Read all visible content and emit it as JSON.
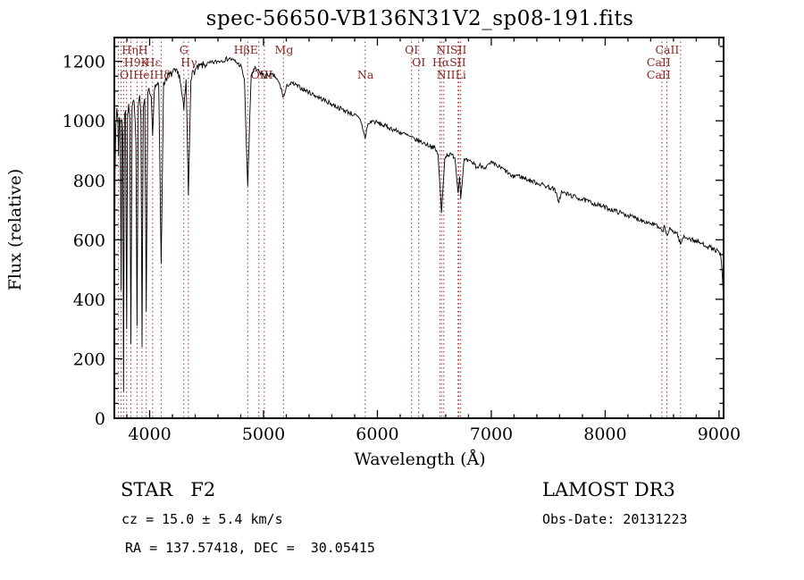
{
  "colors": {
    "spectrum": "#000000",
    "axis": "#000000",
    "marker_line": "#993333",
    "marker_label": "#8b2323",
    "background": "#ffffff"
  },
  "annotations": {
    "class_label": "STAR   F2",
    "cz": "cz = 15.0 ± 5.4 km/s",
    "radec": "RA = 137.57418, DEC =  30.05415",
    "survey": "LAMOST DR3",
    "obs_date": "Obs-Date: 20131223"
  },
  "chart_data": {
    "type": "line",
    "title": "spec-56650-VB136N31V2_sp08-191.fits",
    "xlabel": "Wavelength (Å)",
    "ylabel": "Flux (relative)",
    "xlim": [
      3690,
      9040
    ],
    "ylim": [
      0,
      1280
    ],
    "xticks": [
      4000,
      5000,
      6000,
      7000,
      8000,
      9000
    ],
    "yticks": [
      0,
      200,
      400,
      600,
      800,
      1000,
      1200
    ],
    "x_minor_step": 200,
    "y_minor_step": 50,
    "grid": false,
    "legend": false,
    "noise_amplitude": 8,
    "sample_step": 6,
    "series": [
      {
        "name": "spectrum",
        "color": "#000000",
        "points": [
          [
            3690,
            60
          ],
          [
            3696,
            820
          ],
          [
            3703,
            1000
          ],
          [
            3712,
            1030
          ],
          [
            3720,
            1005
          ],
          [
            3727,
            880
          ],
          [
            3734,
            1015
          ],
          [
            3742,
            995
          ],
          [
            3750,
            430
          ],
          [
            3757,
            1005
          ],
          [
            3764,
            950
          ],
          [
            3771,
            90
          ],
          [
            3779,
            1015
          ],
          [
            3788,
            1035
          ],
          [
            3798,
            300
          ],
          [
            3806,
            1030
          ],
          [
            3816,
            1050
          ],
          [
            3826,
            1005
          ],
          [
            3835,
            250
          ],
          [
            3846,
            1050
          ],
          [
            3858,
            1075
          ],
          [
            3869,
            1030
          ],
          [
            3880,
            920
          ],
          [
            3889,
            310
          ],
          [
            3900,
            1060
          ],
          [
            3912,
            1085
          ],
          [
            3924,
            1010
          ],
          [
            3933,
            240
          ],
          [
            3944,
            1040
          ],
          [
            3957,
            1075
          ],
          [
            3970,
            360
          ],
          [
            3984,
            1090
          ],
          [
            4000,
            1105
          ],
          [
            4014,
            1085
          ],
          [
            4026,
            950
          ],
          [
            4040,
            1105
          ],
          [
            4060,
            1125
          ],
          [
            4080,
            1115
          ],
          [
            4101,
            520
          ],
          [
            4122,
            1120
          ],
          [
            4145,
            1145
          ],
          [
            4180,
            1155
          ],
          [
            4220,
            1165
          ],
          [
            4262,
            1155
          ],
          [
            4300,
            1035
          ],
          [
            4320,
            1140
          ],
          [
            4340,
            750
          ],
          [
            4362,
            1150
          ],
          [
            4400,
            1170
          ],
          [
            4450,
            1185
          ],
          [
            4500,
            1190
          ],
          [
            4550,
            1195
          ],
          [
            4600,
            1200
          ],
          [
            4650,
            1205
          ],
          [
            4700,
            1210
          ],
          [
            4750,
            1200
          ],
          [
            4800,
            1185
          ],
          [
            4832,
            1140
          ],
          [
            4861,
            780
          ],
          [
            4892,
            1155
          ],
          [
            4925,
            1175
          ],
          [
            4960,
            1165
          ],
          [
            5007,
            1150
          ],
          [
            5050,
            1155
          ],
          [
            5100,
            1150
          ],
          [
            5145,
            1120
          ],
          [
            5175,
            1078
          ],
          [
            5212,
            1122
          ],
          [
            5255,
            1125
          ],
          [
            5305,
            1115
          ],
          [
            5355,
            1105
          ],
          [
            5405,
            1095
          ],
          [
            5455,
            1085
          ],
          [
            5505,
            1075
          ],
          [
            5555,
            1065
          ],
          [
            5605,
            1055
          ],
          [
            5655,
            1045
          ],
          [
            5705,
            1036
          ],
          [
            5755,
            1028
          ],
          [
            5805,
            1018
          ],
          [
            5852,
            1003
          ],
          [
            5880,
            962
          ],
          [
            5893,
            938
          ],
          [
            5912,
            985
          ],
          [
            5952,
            1000
          ],
          [
            6002,
            993
          ],
          [
            6052,
            985
          ],
          [
            6102,
            977
          ],
          [
            6152,
            969
          ],
          [
            6202,
            961
          ],
          [
            6252,
            953
          ],
          [
            6302,
            942
          ],
          [
            6352,
            934
          ],
          [
            6402,
            926
          ],
          [
            6452,
            918
          ],
          [
            6502,
            908
          ],
          [
            6532,
            888
          ],
          [
            6563,
            690
          ],
          [
            6592,
            878
          ],
          [
            6622,
            888
          ],
          [
            6680,
            880
          ],
          [
            6708,
            760
          ],
          [
            6722,
            820
          ],
          [
            6731,
            740
          ],
          [
            6762,
            868
          ],
          [
            6802,
            863
          ],
          [
            6852,
            856
          ],
          [
            6872,
            842
          ],
          [
            6902,
            850
          ],
          [
            6952,
            844
          ],
          [
            7002,
            858
          ],
          [
            7052,
            848
          ],
          [
            7102,
            838
          ],
          [
            7152,
            824
          ],
          [
            7182,
            810
          ],
          [
            7222,
            818
          ],
          [
            7272,
            810
          ],
          [
            7322,
            802
          ],
          [
            7382,
            794
          ],
          [
            7442,
            786
          ],
          [
            7502,
            778
          ],
          [
            7552,
            770
          ],
          [
            7594,
            730
          ],
          [
            7616,
            760
          ],
          [
            7662,
            754
          ],
          [
            7722,
            746
          ],
          [
            7782,
            738
          ],
          [
            7842,
            730
          ],
          [
            7902,
            722
          ],
          [
            7962,
            714
          ],
          [
            8022,
            706
          ],
          [
            8082,
            698
          ],
          [
            8142,
            690
          ],
          [
            8202,
            682
          ],
          [
            8262,
            674
          ],
          [
            8322,
            666
          ],
          [
            8382,
            658
          ],
          [
            8442,
            650
          ],
          [
            8498,
            628
          ],
          [
            8520,
            642
          ],
          [
            8542,
            615
          ],
          [
            8566,
            634
          ],
          [
            8602,
            628
          ],
          [
            8632,
            622
          ],
          [
            8662,
            585
          ],
          [
            8692,
            612
          ],
          [
            8742,
            604
          ],
          [
            8792,
            596
          ],
          [
            8842,
            588
          ],
          [
            8892,
            580
          ],
          [
            8942,
            570
          ],
          [
            8992,
            560
          ],
          [
            9012,
            548
          ],
          [
            9022,
            520
          ],
          [
            9030,
            470
          ],
          [
            9035,
            430
          ]
        ]
      }
    ],
    "spectral_line_markers": [
      3727,
      3750,
      3771,
      3798,
      3835,
      3889,
      3933,
      3970,
      4026,
      4101,
      4300,
      4340,
      4861,
      4959,
      5007,
      5175,
      5893,
      6300,
      6363,
      6548,
      6563,
      6583,
      6708,
      6716,
      6731,
      8498,
      8542,
      8662
    ],
    "line_labels": [
      {
        "text": "HηH",
        "wl": 3870,
        "row": 0
      },
      {
        "text": "G",
        "wl": 4300,
        "row": 0
      },
      {
        "text": "HβE",
        "wl": 4845,
        "row": 0
      },
      {
        "text": "Mg",
        "wl": 5180,
        "row": 0
      },
      {
        "text": "OI",
        "wl": 6300,
        "row": 0
      },
      {
        "text": "NISII",
        "wl": 6650,
        "row": 0
      },
      {
        "text": "CaII",
        "wl": 8545,
        "row": 0
      },
      {
        "text": "H9K",
        "wl": 3885,
        "row": 1
      },
      {
        "text": "Hε",
        "wl": 4030,
        "row": 1
      },
      {
        "text": "Hγ",
        "wl": 4345,
        "row": 1
      },
      {
        "text": "OI",
        "wl": 6363,
        "row": 1
      },
      {
        "text": "HαSII",
        "wl": 6630,
        "row": 1
      },
      {
        "text": "CaII",
        "wl": 8470,
        "row": 1
      },
      {
        "text": "OIHeIHδ",
        "wl": 3960,
        "row": 2
      },
      {
        "text": "OIII",
        "wl": 4985,
        "row": 2
      },
      {
        "text": "Na",
        "wl": 5895,
        "row": 2
      },
      {
        "text": "NIILi",
        "wl": 6650,
        "row": 2
      },
      {
        "text": "CaII",
        "wl": 8470,
        "row": 2
      }
    ]
  }
}
